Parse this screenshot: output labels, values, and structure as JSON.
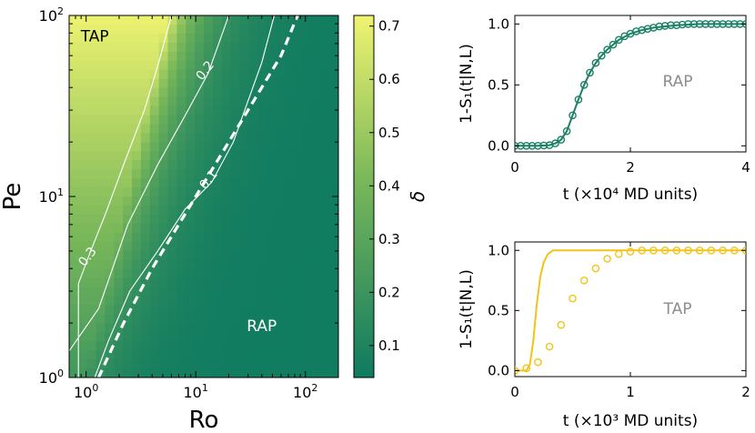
{
  "heatmap": {
    "type": "heatmap",
    "xlabel": "Ro",
    "ylabel": "Pe",
    "xscale": "log",
    "yscale": "log",
    "xlim": [
      0.7,
      200
    ],
    "ylim": [
      1,
      100
    ],
    "xticks": [
      {
        "value": 1,
        "base": "10",
        "exp": "0"
      },
      {
        "value": 10,
        "base": "10",
        "exp": "1"
      },
      {
        "value": 100,
        "base": "10",
        "exp": "2"
      }
    ],
    "yticks": [
      {
        "value": 1,
        "base": "10",
        "exp": "0"
      },
      {
        "value": 10,
        "base": "10",
        "exp": "1"
      },
      {
        "value": 100,
        "base": "10",
        "exp": "2"
      }
    ],
    "colorbar": {
      "label": "δ",
      "range": [
        0.04,
        0.72
      ],
      "ticks": [
        {
          "value": 0.1,
          "label": "0.1"
        },
        {
          "value": 0.2,
          "label": "0.2"
        },
        {
          "value": 0.3,
          "label": "0.3"
        },
        {
          "value": 0.4,
          "label": "0.4"
        },
        {
          "value": 0.5,
          "label": "0.5"
        },
        {
          "value": 0.6,
          "label": "0.6"
        },
        {
          "value": 0.7,
          "label": "0.7"
        }
      ],
      "low_color": "#0e7a60",
      "mid_color": "#7ab85a",
      "high_color": "#f0f470"
    },
    "contours": [
      {
        "level": 0.3,
        "label": "0.3",
        "label_at": [
          1.1,
          4.5
        ],
        "points": [
          [
            0.85,
            1
          ],
          [
            0.85,
            3.3
          ],
          [
            1.1,
            5
          ],
          [
            1.5,
            8
          ],
          [
            2.2,
            15
          ],
          [
            3.4,
            30
          ],
          [
            4.6,
            55
          ],
          [
            6,
            100
          ]
        ]
      },
      {
        "level": 0.2,
        "label": "0.2",
        "label_at": [
          13,
          48
        ],
        "points": [
          [
            0.7,
            1.4
          ],
          [
            1.3,
            2.4
          ],
          [
            2.4,
            7
          ],
          [
            4.5,
            15
          ],
          [
            8,
            28
          ],
          [
            13,
            48
          ],
          [
            20,
            100
          ]
        ]
      },
      {
        "level": 0.1,
        "label": "0.1",
        "label_at": [
          14,
          12
        ],
        "points": [
          [
            1.2,
            1
          ],
          [
            1.6,
            1.6
          ],
          [
            2.5,
            3
          ],
          [
            4.5,
            5
          ],
          [
            8,
            8.5
          ],
          [
            14,
            12
          ],
          [
            22,
            20
          ],
          [
            40,
            55
          ],
          [
            52,
            100
          ]
        ]
      }
    ],
    "boundary": {
      "style": "dashed",
      "points": [
        [
          1.3,
          1
        ],
        [
          2.2,
          2
        ],
        [
          4,
          4
        ],
        [
          8,
          8
        ],
        [
          15,
          15
        ],
        [
          30,
          30
        ],
        [
          60,
          60
        ],
        [
          85,
          100
        ]
      ]
    },
    "regions": [
      {
        "label": "TAP",
        "at": [
          1.2,
          72
        ]
      },
      {
        "label": "RAP",
        "at": [
          40,
          1.8
        ]
      }
    ]
  },
  "rap_panel": {
    "type": "line",
    "title": "RAP",
    "ylabel": "1-S₁(t|N,L)",
    "xlabel": "t (×10⁴ MD units)",
    "xlim": [
      0,
      4
    ],
    "ylim": [
      -0.05,
      1.07
    ],
    "xticks": [
      "0",
      "2",
      "4"
    ],
    "yticks": [
      "0.0",
      "0.5",
      "1.0"
    ],
    "color": "#1a8066",
    "curve": [
      [
        0,
        0
      ],
      [
        0.4,
        0
      ],
      [
        0.6,
        0.005
      ],
      [
        0.7,
        0.02
      ],
      [
        0.8,
        0.05
      ],
      [
        0.9,
        0.12
      ],
      [
        1.0,
        0.25
      ],
      [
        1.1,
        0.38
      ],
      [
        1.2,
        0.5
      ],
      [
        1.3,
        0.6
      ],
      [
        1.4,
        0.68
      ],
      [
        1.5,
        0.74
      ],
      [
        1.6,
        0.79
      ],
      [
        1.8,
        0.87
      ],
      [
        2.0,
        0.92
      ],
      [
        2.2,
        0.95
      ],
      [
        2.4,
        0.97
      ],
      [
        2.8,
        0.99
      ],
      [
        3.2,
        1.0
      ],
      [
        4.0,
        1.0
      ]
    ],
    "markers": [
      [
        0,
        0
      ],
      [
        0.1,
        0
      ],
      [
        0.2,
        0
      ],
      [
        0.3,
        0
      ],
      [
        0.4,
        0
      ],
      [
        0.5,
        0.003
      ],
      [
        0.6,
        0.005
      ],
      [
        0.7,
        0.02
      ],
      [
        0.8,
        0.05
      ],
      [
        0.9,
        0.12
      ],
      [
        1.0,
        0.25
      ],
      [
        1.1,
        0.38
      ],
      [
        1.2,
        0.5
      ],
      [
        1.3,
        0.6
      ],
      [
        1.4,
        0.68
      ],
      [
        1.5,
        0.74
      ],
      [
        1.6,
        0.79
      ],
      [
        1.7,
        0.83
      ],
      [
        1.8,
        0.87
      ],
      [
        1.9,
        0.9
      ],
      [
        2.0,
        0.92
      ],
      [
        2.1,
        0.94
      ],
      [
        2.2,
        0.95
      ],
      [
        2.3,
        0.96
      ],
      [
        2.4,
        0.97
      ],
      [
        2.5,
        0.98
      ],
      [
        2.6,
        0.985
      ],
      [
        2.7,
        0.99
      ],
      [
        2.8,
        0.99
      ],
      [
        2.9,
        0.995
      ],
      [
        3.0,
        1.0
      ],
      [
        3.1,
        1.0
      ],
      [
        3.2,
        1.0
      ],
      [
        3.3,
        1.0
      ],
      [
        3.4,
        1.0
      ],
      [
        3.5,
        1.0
      ],
      [
        3.6,
        1.0
      ],
      [
        3.7,
        1.0
      ],
      [
        3.8,
        1.0
      ],
      [
        3.9,
        1.0
      ],
      [
        4.0,
        1.0
      ]
    ]
  },
  "tap_panel": {
    "type": "line",
    "title": "TAP",
    "ylabel": "1-S₁(t|N,L)",
    "xlabel": "t (×10³ MD units)",
    "xlim": [
      0,
      2
    ],
    "ylim": [
      -0.05,
      1.07
    ],
    "xticks": [
      "0",
      "1",
      "2"
    ],
    "yticks": [
      "0.0",
      "0.5",
      "1.0"
    ],
    "color": "#f2c418",
    "curve": [
      [
        0,
        0
      ],
      [
        0.1,
        0
      ],
      [
        0.13,
        0.05
      ],
      [
        0.16,
        0.25
      ],
      [
        0.19,
        0.55
      ],
      [
        0.22,
        0.78
      ],
      [
        0.25,
        0.9
      ],
      [
        0.28,
        0.96
      ],
      [
        0.3,
        0.98
      ],
      [
        0.33,
        1.0
      ],
      [
        2.0,
        1.0
      ]
    ],
    "markers": [
      [
        0,
        0
      ],
      [
        0.1,
        0.02
      ],
      [
        0.2,
        0.07
      ],
      [
        0.3,
        0.2
      ],
      [
        0.4,
        0.38
      ],
      [
        0.5,
        0.6
      ],
      [
        0.6,
        0.75
      ],
      [
        0.7,
        0.85
      ],
      [
        0.8,
        0.93
      ],
      [
        0.9,
        0.97
      ],
      [
        1.0,
        0.99
      ],
      [
        1.1,
        1.0
      ],
      [
        1.2,
        1.0
      ],
      [
        1.3,
        1.0
      ],
      [
        1.4,
        1.0
      ],
      [
        1.5,
        1.0
      ],
      [
        1.6,
        1.0
      ],
      [
        1.7,
        1.0
      ],
      [
        1.8,
        1.0
      ],
      [
        1.9,
        1.0
      ],
      [
        2.0,
        1.0
      ]
    ]
  }
}
